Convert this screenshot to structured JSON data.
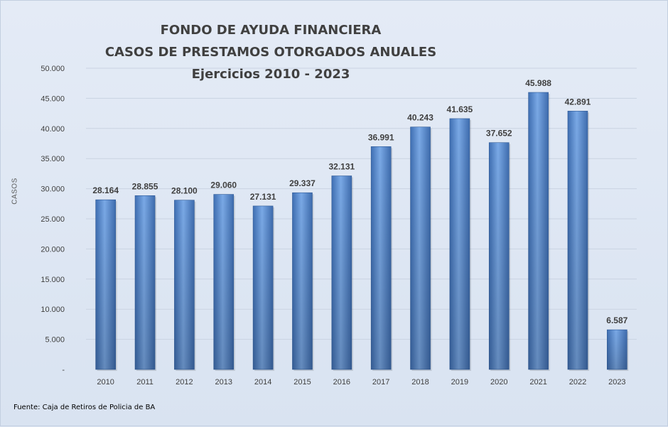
{
  "chart_data": {
    "type": "bar",
    "title": "FONDO DE AYUDA FINANCIERA",
    "subtitle": "CASOS DE PRESTAMOS  OTORGADOS  ANUALES",
    "subtitle2": "Ejercicios  2010 - 2023",
    "ylabel": "CASOS",
    "xlabel": "",
    "categories": [
      "2010",
      "2011",
      "2012",
      "2013",
      "2014",
      "2015",
      "2016",
      "2017",
      "2018",
      "2019",
      "2020",
      "2021",
      "2022",
      "2023"
    ],
    "values": [
      28164,
      28855,
      28100,
      29060,
      27131,
      29337,
      32131,
      36991,
      40243,
      41635,
      37652,
      45988,
      42891,
      6587
    ],
    "value_labels": [
      "28.164",
      "28.855",
      "28.100",
      "29.060",
      "27.131",
      "29.337",
      "32.131",
      "36.991",
      "40.243",
      "41.635",
      "37.652",
      "45.988",
      "42.891",
      "6.587"
    ],
    "ylim": [
      0,
      50000
    ],
    "yticks": [
      0,
      5000,
      10000,
      15000,
      20000,
      25000,
      30000,
      35000,
      40000,
      45000,
      50000
    ],
    "ytick_labels": [
      "-",
      "5.000",
      "10.000",
      "15.000",
      "20.000",
      "25.000",
      "30.000",
      "35.000",
      "40.000",
      "45.000",
      "50.000"
    ],
    "grid": true,
    "legend": "none",
    "bar_color": "#5b8fd6",
    "source": "Fuente: Caja de Retiros de Policia de BA"
  }
}
